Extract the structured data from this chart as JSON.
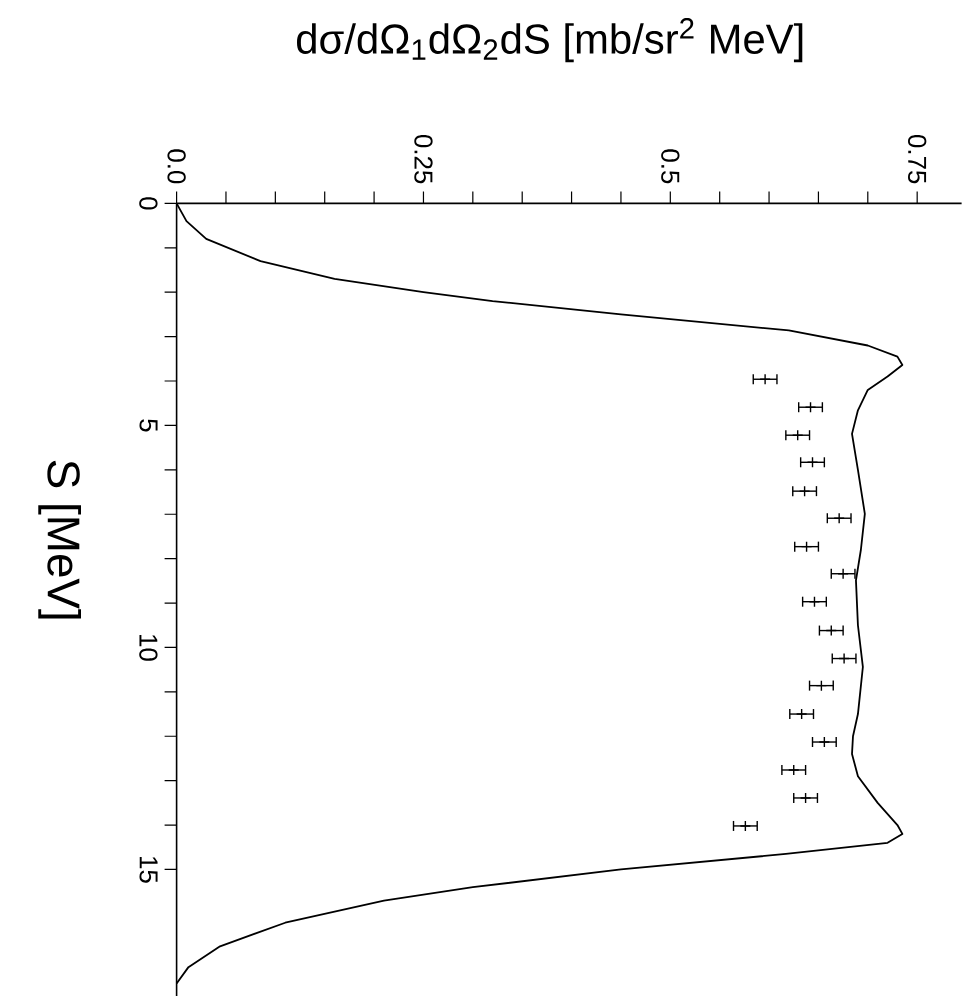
{
  "chart_data": {
    "type": "line",
    "xlabel": "dσ/dΩ$_{1}$dΩ$_{2}$dS [mb/sr$^{2}$ MeV]",
    "ylabel": "S [MeV]",
    "xlim": [
      0,
      0.795
    ],
    "ylim": [
      17.85,
      0
    ],
    "xticks": [
      {
        "value": 0,
        "label": "0.0"
      },
      0.25,
      0.5,
      0.75
    ],
    "yticks": [
      0,
      5,
      10,
      15
    ],
    "series": [
      {
        "color": "#000000",
        "line_style": "solid",
        "x": [
          0,
          0.01,
          0.03,
          0.085,
          0.16,
          0.25,
          0.32,
          0.45,
          0.62,
          0.7,
          0.73,
          0.735,
          0.72,
          0.7,
          0.69,
          0.684,
          0.69,
          0.697,
          0.693,
          0.688,
          0.69,
          0.695,
          0.69,
          0.685,
          0.684,
          0.69,
          0.71,
          0.73,
          0.735,
          0.72,
          0.617,
          0.45,
          0.3,
          0.21,
          0.11,
          0.044,
          0.012,
          0
        ],
        "values": [
          0,
          0.4,
          0.8,
          1.3,
          1.7,
          2.0,
          2.2,
          2.5,
          2.86,
          3.2,
          3.45,
          3.64,
          3.9,
          4.2,
          4.66,
          5.19,
          6.0,
          6.99,
          7.8,
          8.49,
          9.5,
          10.44,
          11.5,
          12.0,
          12.4,
          12.9,
          13.5,
          14.0,
          14.2,
          14.4,
          14.65,
          15.0,
          15.4,
          15.7,
          16.2,
          16.73,
          17.2,
          17.57
        ]
      },
      {
        "type": "scatter",
        "color": "#000000",
        "marker": "cross",
        "x": [
          0.596,
          0.642,
          0.629,
          0.644,
          0.636,
          0.671,
          0.638,
          0.675,
          0.646,
          0.663,
          0.676,
          0.653,
          0.633,
          0.656,
          0.625,
          0.637,
          0.576
        ],
        "values": [
          3.96,
          4.59,
          5.22,
          5.83,
          6.48,
          7.09,
          7.73,
          8.34,
          8.97,
          9.62,
          10.25,
          10.86,
          11.5,
          12.13,
          12.76,
          13.39,
          14.02
        ],
        "xerrors": [
          0.012,
          0.012,
          0.012,
          0.012,
          0.012,
          0.012,
          0.012,
          0.012,
          0.012,
          0.012,
          0.012,
          0.012,
          0.012,
          0.012,
          0.012,
          0.012,
          0.012
        ]
      }
    ]
  }
}
